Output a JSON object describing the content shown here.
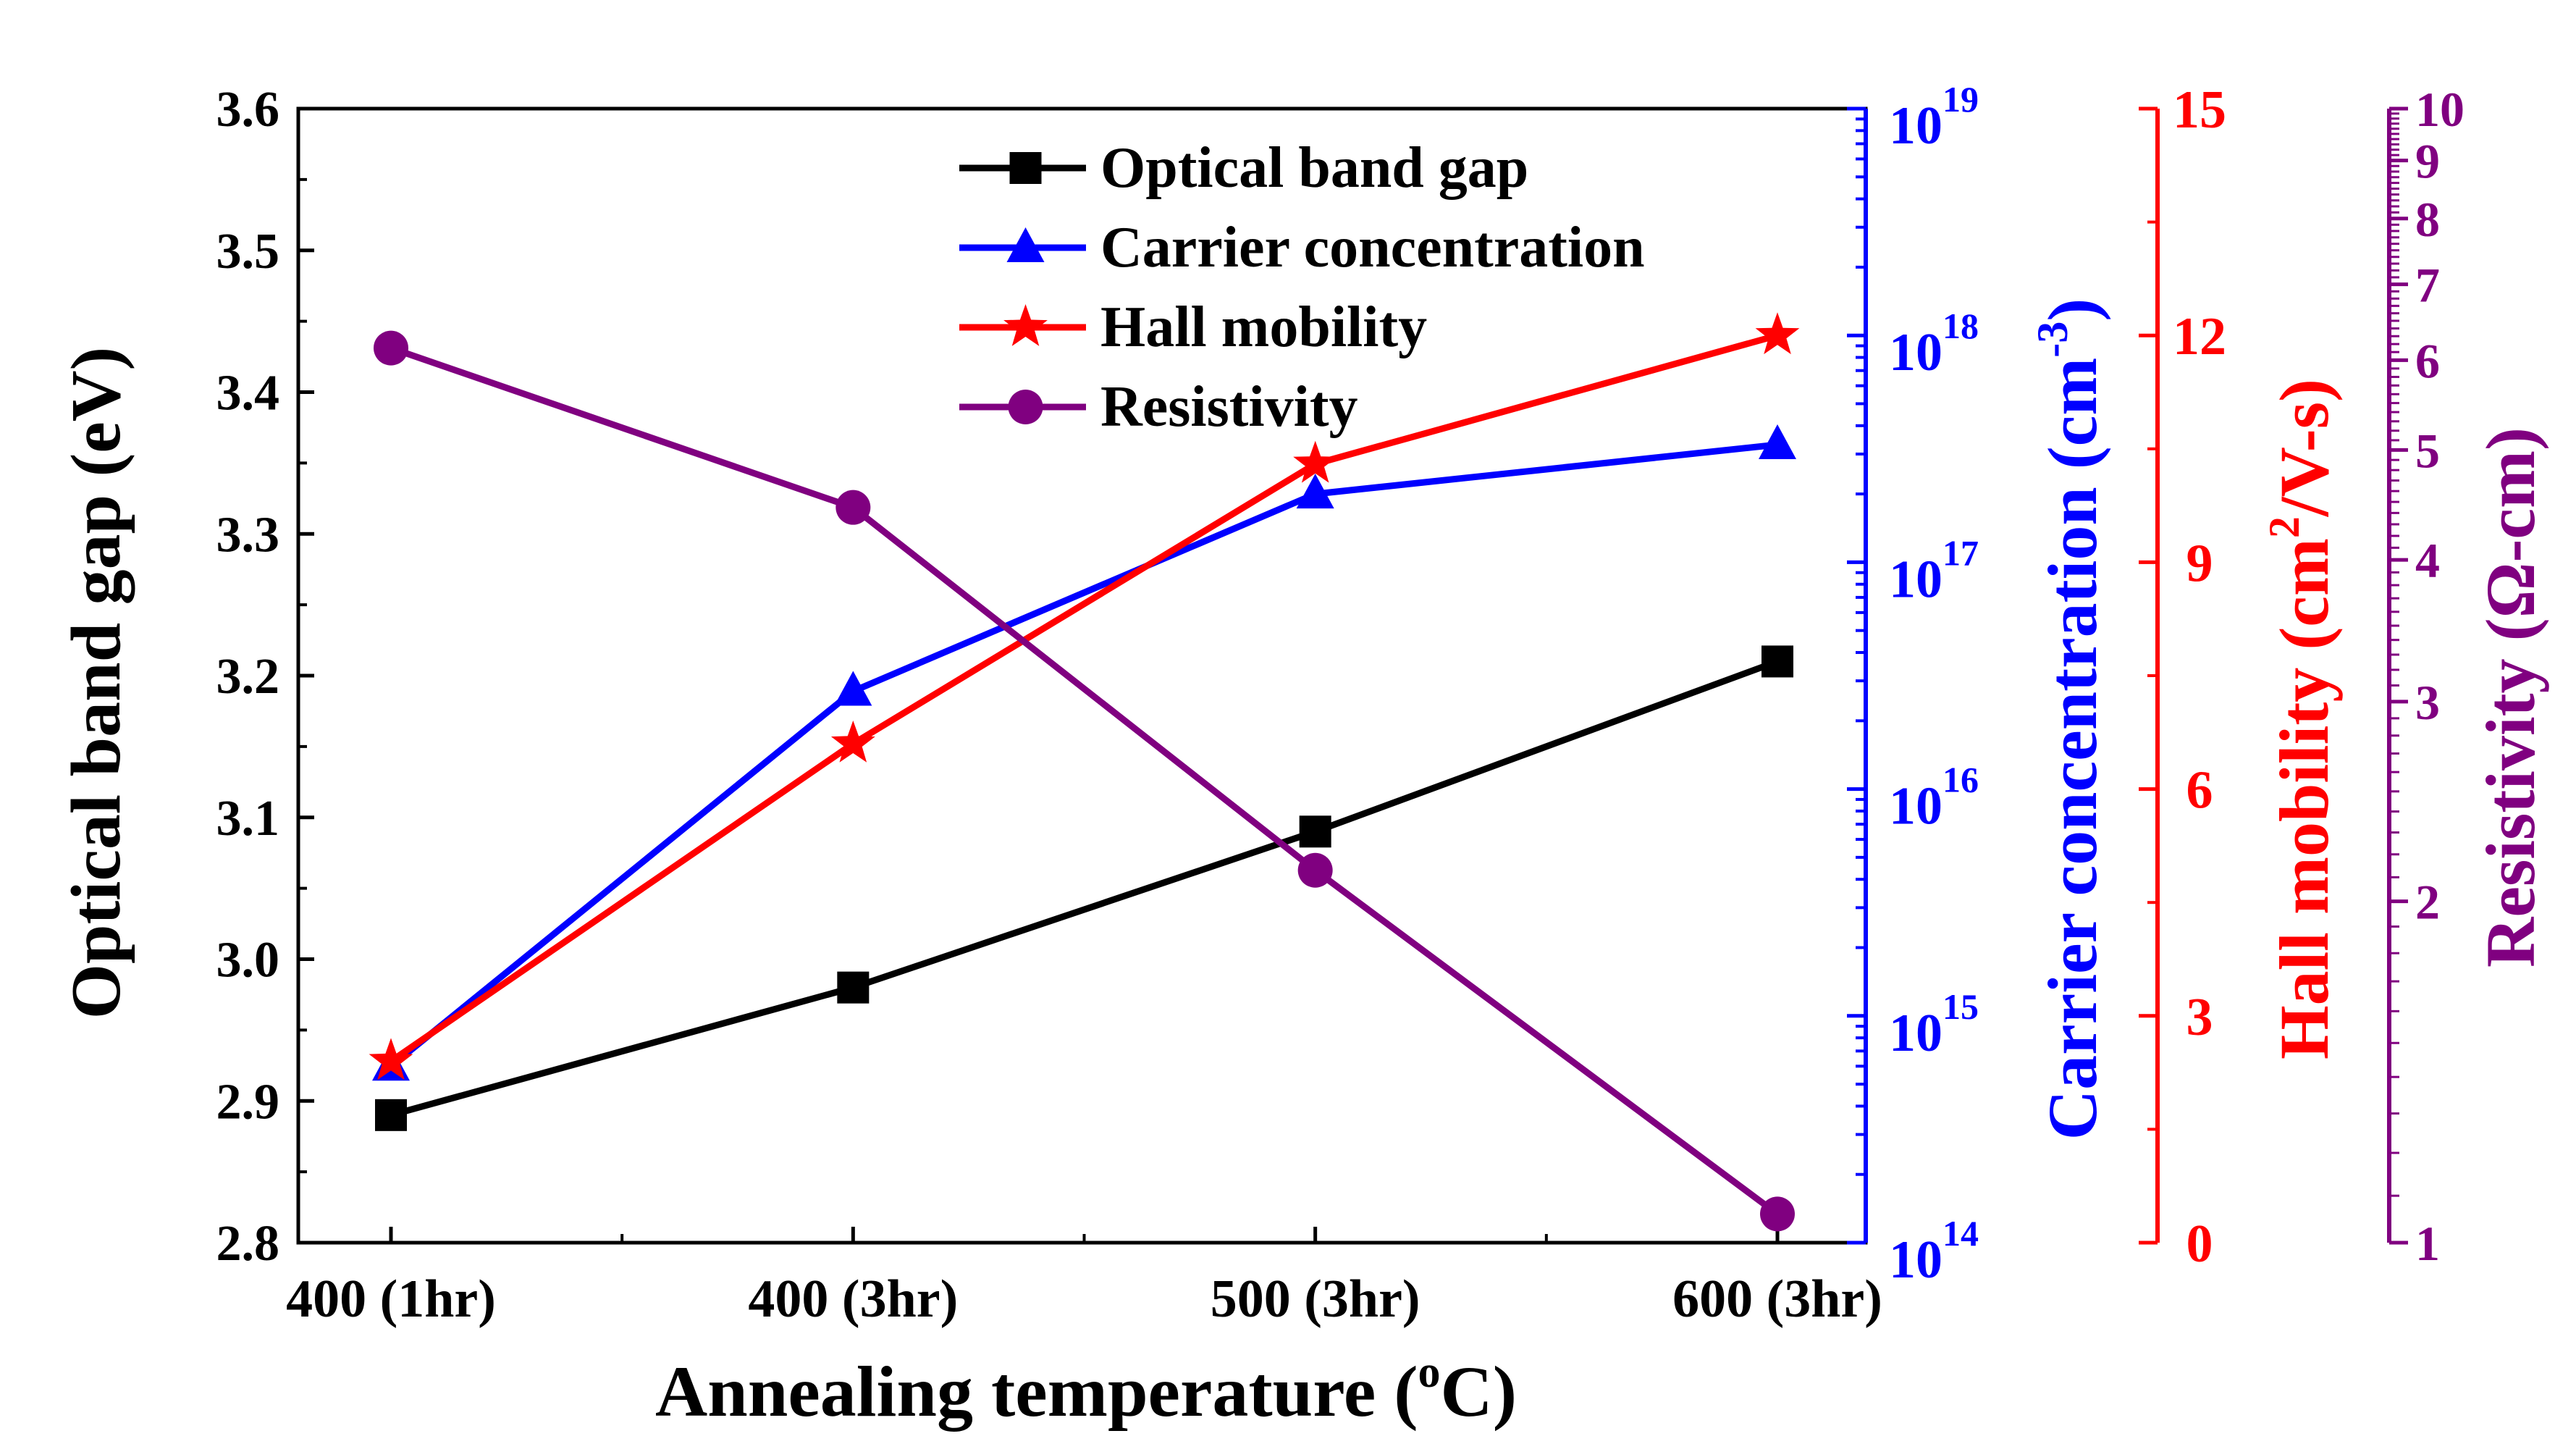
{
  "chart_data": {
    "type": "line",
    "xlabel_main": "Annealing temperature (",
    "xlabel_sup": "o",
    "xlabel_tail": "C)",
    "categories": [
      "400 (1hr)",
      "400 (3hr)",
      "500 (3hr)",
      "600 (3hr)"
    ],
    "axes": {
      "left": {
        "label": "Optical band gap  (eV)",
        "color": "#000000",
        "ylim": [
          2.8,
          3.6
        ],
        "ticks": [
          "2.8",
          "2.9",
          "3.0",
          "3.1",
          "3.2",
          "3.3",
          "3.4",
          "3.5",
          "3.6"
        ]
      },
      "carrier": {
        "label_main": "Carrier concentration (cm",
        "label_sup": "-3",
        "label_tail": ")",
        "color": "#0000ff",
        "scale": "log",
        "ylim": [
          100000000000000.0,
          1e+19
        ],
        "ticks": [
          {
            "base": "10",
            "exp": "14"
          },
          {
            "base": "10",
            "exp": "15"
          },
          {
            "base": "10",
            "exp": "16"
          },
          {
            "base": "10",
            "exp": "17"
          },
          {
            "base": "10",
            "exp": "18"
          },
          {
            "base": "10",
            "exp": "19"
          }
        ]
      },
      "mobility": {
        "label_main": "Hall mobility (cm",
        "label_sup": "2",
        "label_tail": "/V-s)",
        "color": "#ff0000",
        "ylim": [
          0,
          15
        ],
        "ticks": [
          "0",
          "3",
          "6",
          "9",
          "12",
          "15"
        ]
      },
      "resistivity": {
        "label": "Resistivity (Ω-cm)",
        "color": "#800080",
        "scale": "log",
        "ylim": [
          1,
          10
        ],
        "ticks": [
          "1",
          "2",
          "3",
          "4",
          "5",
          "6",
          "7",
          "8",
          "9",
          "10"
        ]
      }
    },
    "series": [
      {
        "name": "Optical band gap",
        "axis": "left",
        "marker": "square",
        "color": "#000000",
        "values": [
          2.89,
          2.98,
          3.09,
          3.21
        ]
      },
      {
        "name": "Carrier concentration",
        "axis": "carrier",
        "marker": "triangle",
        "color": "#0000ff",
        "values": [
          600000000000000.0,
          2.7e+16,
          2e+17,
          3.3e+17
        ]
      },
      {
        "name": "Hall mobility",
        "axis": "mobility",
        "marker": "star",
        "color": "#ff0000",
        "values": [
          2.4,
          6.6,
          10.3,
          12.0
        ]
      },
      {
        "name": "Resistivity",
        "axis": "resistivity",
        "marker": "circle",
        "color": "#800080",
        "values": [
          6.15,
          4.45,
          2.13,
          1.06
        ]
      }
    ]
  }
}
